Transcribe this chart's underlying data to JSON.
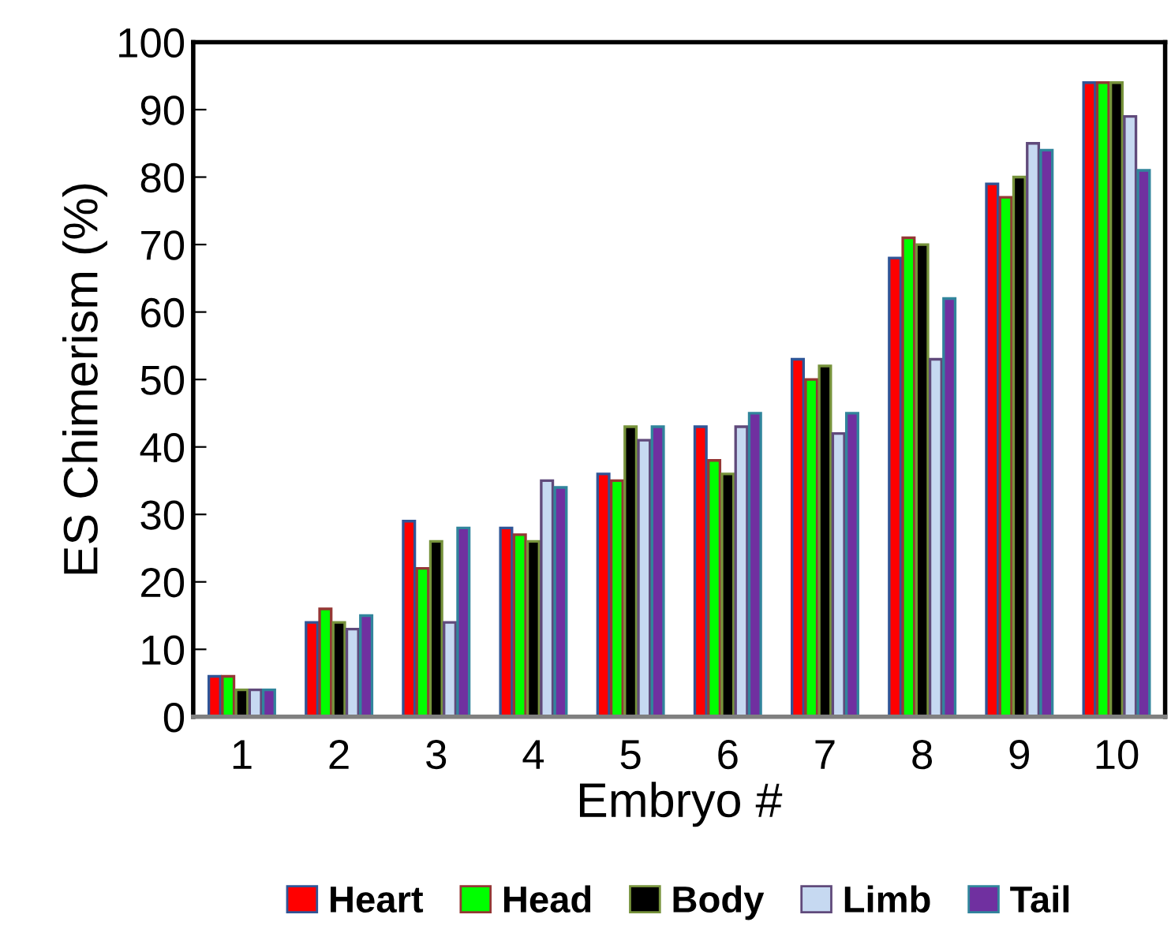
{
  "chart_data": {
    "type": "bar",
    "xlabel": "Embryo #",
    "ylabel": "ES Chimerism (%)",
    "categories": [
      "1",
      "2",
      "3",
      "4",
      "5",
      "6",
      "7",
      "8",
      "9",
      "10"
    ],
    "series": [
      {
        "name": "Heart",
        "color": "#ff0000",
        "values": [
          6,
          14,
          29,
          28,
          36,
          43,
          53,
          68,
          79,
          94
        ]
      },
      {
        "name": "Head",
        "color": "#00ff00",
        "values": [
          6,
          16,
          22,
          27,
          35,
          38,
          50,
          71,
          77,
          94
        ]
      },
      {
        "name": "Body",
        "color": "#000000",
        "values": [
          4,
          14,
          26,
          26,
          43,
          36,
          52,
          70,
          80,
          94
        ]
      },
      {
        "name": "Limb",
        "color": "#c6d9f1",
        "values": [
          4,
          13,
          14,
          35,
          41,
          43,
          42,
          53,
          85,
          89
        ]
      },
      {
        "name": "Tail",
        "color": "#7030a0",
        "values": [
          4,
          15,
          28,
          34,
          43,
          45,
          45,
          62,
          84,
          81
        ]
      }
    ],
    "ylim": [
      0,
      100
    ],
    "yticks": [
      0,
      10,
      20,
      30,
      40,
      50,
      60,
      70,
      80,
      90,
      100
    ],
    "grid": false,
    "legend": "bottom"
  }
}
